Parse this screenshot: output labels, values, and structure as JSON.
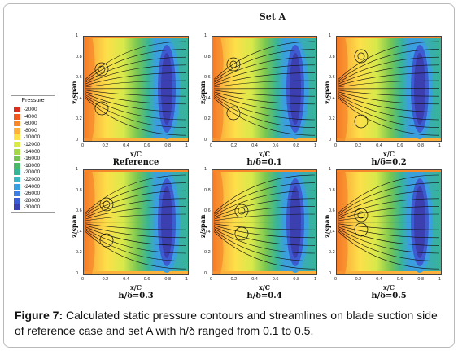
{
  "set_title": "Set A",
  "legend": {
    "title": "Pressure",
    "entries": [
      {
        "label": "-2000",
        "color": "#d7301f"
      },
      {
        "label": "-4000",
        "color": "#ef5a1f"
      },
      {
        "label": "-6000",
        "color": "#f7872b"
      },
      {
        "label": "-8000",
        "color": "#fbb13c"
      },
      {
        "label": "-10000",
        "color": "#fde04a"
      },
      {
        "label": "-12000",
        "color": "#d8e94a"
      },
      {
        "label": "-14000",
        "color": "#a6d74a"
      },
      {
        "label": "-16000",
        "color": "#74c553"
      },
      {
        "label": "-18000",
        "color": "#4cb86a"
      },
      {
        "label": "-20000",
        "color": "#38b597"
      },
      {
        "label": "-22000",
        "color": "#39b5c6"
      },
      {
        "label": "-24000",
        "color": "#3b9ee0"
      },
      {
        "label": "-26000",
        "color": "#3d7ee0"
      },
      {
        "label": "-28000",
        "color": "#3e5cd1"
      },
      {
        "label": "-30000",
        "color": "#3b3fb0"
      }
    ]
  },
  "axes": {
    "ylabel": "z/span",
    "xlabel": "x/C",
    "yticks": [
      "1",
      "0.8",
      "0.6",
      "0.4",
      "0.2",
      "0"
    ],
    "xticks": [
      "0",
      "0.2",
      "0.4",
      "0.6",
      "0.8",
      "1"
    ]
  },
  "panels": [
    {
      "label": "Reference"
    },
    {
      "label": "h/δ=0.1"
    },
    {
      "label": "h/δ=0.2"
    },
    {
      "label": "h/δ=0.3"
    },
    {
      "label": "h/δ=0.4"
    },
    {
      "label": "h/δ=0.5"
    }
  ],
  "caption": {
    "prefix": "Figure 7:",
    "text": " Calculated static pressure contours and streamlines on blade suction side of reference case and set A with h/δ ranged from 0.1 to 0.5."
  }
}
